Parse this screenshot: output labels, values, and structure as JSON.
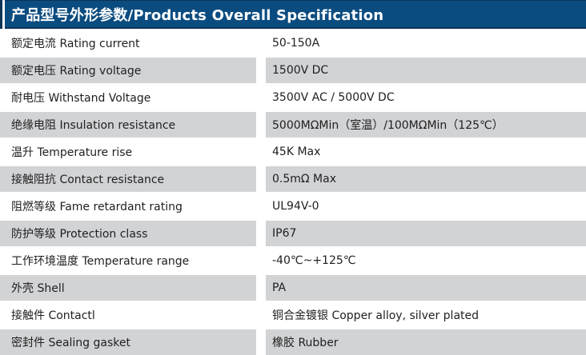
{
  "header": {
    "title": "产品型号外形参数/Products Overall Specification"
  },
  "table": {
    "rows": [
      {
        "label": "额定电流 Rating current",
        "value": "50-150A"
      },
      {
        "label": "额定电压 Rating voltage",
        "value": "1500V DC"
      },
      {
        "label": "耐电压 Withstand Voltage",
        "value": "3500V AC / 5000V DC"
      },
      {
        "label": "绝缘电阻 Insulation resistance",
        "value": "5000MΩMin（室温）/100MΩMin（125℃）"
      },
      {
        "label": "温升 Temperature rise",
        "value": "45K Max"
      },
      {
        "label": "接触阻抗 Contact resistance",
        "value": "0.5mΩ Max"
      },
      {
        "label": "阻燃等级 Fame retardant rating",
        "value": "UL94V-0"
      },
      {
        "label": "防护等级 Protection class",
        "value": "IP67"
      },
      {
        "label": "工作环境温度 Temperature range",
        "value": "-40℃~+125℃"
      },
      {
        "label": "外壳 Shell",
        "value": "PA"
      },
      {
        "label": "接触件 Contactl",
        "value": "铜合金镀银 Copper alloy, silver plated"
      },
      {
        "label": "密封件 Sealing gasket",
        "value": "橡胶 Rubber"
      }
    ]
  },
  "colors": {
    "header_bg": "#0b4c80",
    "header_border": "#0e3356",
    "header_text": "#ffffff",
    "row_alt_bg": "#d2d3d5",
    "text": "#1f1f1f"
  }
}
